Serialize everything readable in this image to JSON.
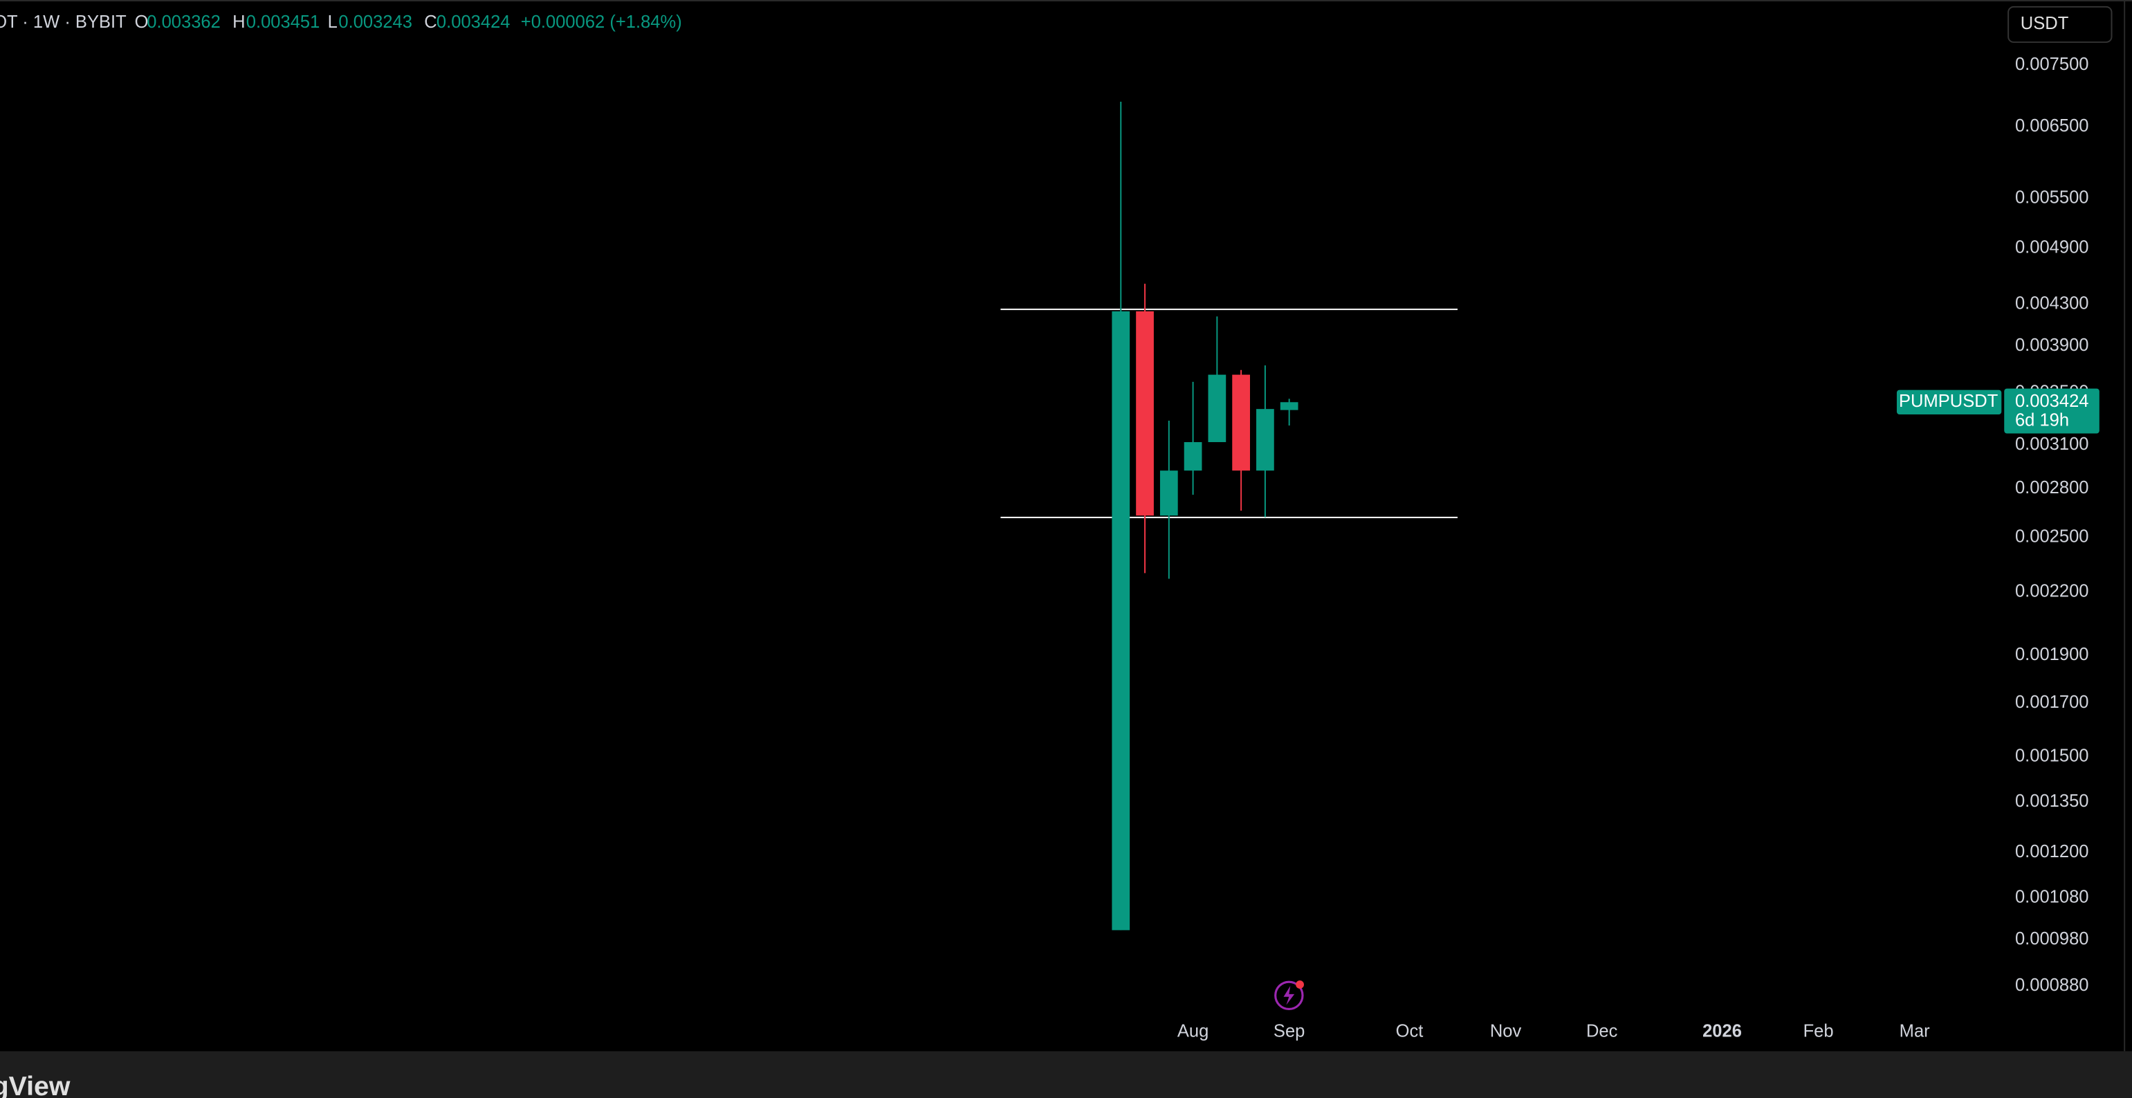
{
  "chart_data": {
    "type": "candlestick",
    "symbol_line": "OT · 1W · BYBIT",
    "ohlc_labels": [
      "O",
      "H",
      "L",
      "C"
    ],
    "change": "+0.000062 (+1.84%)",
    "currency": "USDT",
    "countdown": "6d 19h",
    "log_scale": true,
    "grid": false,
    "categories": [
      null,
      null,
      null,
      null,
      null,
      null,
      null,
      null
    ],
    "series": [
      {
        "name": "PUMPUSDT",
        "up_color": "#089981",
        "down_color": "#f23645",
        "open": [
          0.001002,
          0.00423,
          0.00263,
          0.00292,
          0.00312,
          0.00365,
          0.00292,
          0.003362
        ],
        "high": [
          0.00689,
          0.00451,
          0.00328,
          0.00359,
          0.00418,
          0.00369,
          0.00373,
          0.003451
        ],
        "low": [
          0.001002,
          0.0023,
          0.00227,
          0.00276,
          0.00312,
          0.00266,
          0.00262,
          0.003243
        ],
        "close": [
          0.00423,
          0.00263,
          0.00292,
          0.00312,
          0.00365,
          0.00292,
          0.00337,
          0.003424
        ]
      }
    ],
    "hlines": [
      0.00426,
      0.00262
    ],
    "hline_span": [
      -5,
      14
    ],
    "xlim": [
      -46.6,
      36.5
    ],
    "xticks": [
      {
        "value": 3,
        "label": "Aug"
      },
      {
        "value": 7,
        "label": "Sep"
      },
      {
        "value": 12,
        "label": "Oct"
      },
      {
        "value": 16,
        "label": "Nov"
      },
      {
        "value": 20,
        "label": "Dec"
      },
      {
        "value": 25,
        "label": "2026"
      },
      {
        "value": 29,
        "label": "Feb"
      },
      {
        "value": 33,
        "label": "Mar"
      }
    ],
    "ylim": [
      0.000756,
      0.00873
    ],
    "yticks": [
      {
        "value": 0.0075,
        "label": "0.007500"
      },
      {
        "value": 0.0065,
        "label": "0.006500"
      },
      {
        "value": 0.0055,
        "label": "0.005500"
      },
      {
        "value": 0.0049,
        "label": "0.004900"
      },
      {
        "value": 0.0043,
        "label": "0.004300"
      },
      {
        "value": 0.0039,
        "label": "0.003900"
      },
      {
        "value": 0.0035,
        "label": "0.003500"
      },
      {
        "value": 0.0031,
        "label": "0.003100"
      },
      {
        "value": 0.0028,
        "label": "0.002800"
      },
      {
        "value": 0.0025,
        "label": "0.002500"
      },
      {
        "value": 0.0022,
        "label": "0.002200"
      },
      {
        "value": 0.0019,
        "label": "0.001900"
      },
      {
        "value": 0.0017,
        "label": "0.001700"
      },
      {
        "value": 0.0015,
        "label": "0.001500"
      },
      {
        "value": 0.00135,
        "label": "0.001350"
      },
      {
        "value": 0.0012,
        "label": "0.001200"
      },
      {
        "value": 0.00108,
        "label": "0.001080"
      },
      {
        "value": 0.00098,
        "label": "0.000980"
      },
      {
        "value": 0.00088,
        "label": "0.000880"
      }
    ]
  },
  "footer": {
    "logo": "ngView"
  }
}
